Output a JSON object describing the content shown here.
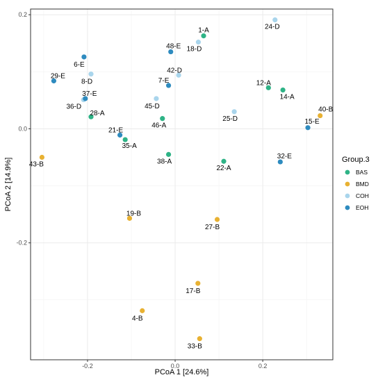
{
  "chart_data": {
    "type": "scatter",
    "title": "",
    "xlabel": "PCoA 1 [24.6%]",
    "ylabel": "PCoA 2 [14.9%]",
    "xlim": [
      -0.33,
      0.36
    ],
    "ylim": [
      -0.405,
      0.21
    ],
    "xticks": [
      -0.2,
      0.0,
      0.2
    ],
    "xtick_labels": [
      "-0.2",
      "0.0",
      "0.2"
    ],
    "yticks": [
      -0.2,
      0.0,
      0.2
    ],
    "ytick_labels": [
      "-0.2",
      "0.0",
      "0.2"
    ],
    "grid": true,
    "legend": {
      "title": "Group.3",
      "placement": "right"
    },
    "series": [
      {
        "name": "BAS",
        "color": "#2eb386",
        "points": [
          {
            "label": "1-A",
            "x": 0.065,
            "y": 0.163
          },
          {
            "label": "12-A",
            "x": 0.213,
            "y": 0.072
          },
          {
            "label": "14-A",
            "x": 0.246,
            "y": 0.068
          },
          {
            "label": "28-A",
            "x": -0.192,
            "y": 0.021
          },
          {
            "label": "46-A",
            "x": -0.029,
            "y": 0.018
          },
          {
            "label": "35-A",
            "x": -0.114,
            "y": -0.019
          },
          {
            "label": "38-A",
            "x": -0.015,
            "y": -0.045
          },
          {
            "label": "22-A",
            "x": 0.111,
            "y": -0.057
          }
        ]
      },
      {
        "name": "BMD",
        "color": "#e8b132",
        "points": [
          {
            "label": "40-B",
            "x": 0.331,
            "y": 0.023
          },
          {
            "label": "43-B",
            "x": -0.304,
            "y": -0.05
          },
          {
            "label": "19-B",
            "x": -0.104,
            "y": -0.157
          },
          {
            "label": "27-B",
            "x": 0.096,
            "y": -0.159
          },
          {
            "label": "17-B",
            "x": 0.052,
            "y": -0.271
          },
          {
            "label": "4-B",
            "x": -0.075,
            "y": -0.319
          },
          {
            "label": "33-B",
            "x": 0.056,
            "y": -0.368
          }
        ]
      },
      {
        "name": "COH",
        "color": "#a9d5ec",
        "points": [
          {
            "label": "24-D",
            "x": 0.228,
            "y": 0.191
          },
          {
            "label": "18-D",
            "x": 0.053,
            "y": 0.152
          },
          {
            "label": "8-D",
            "x": -0.192,
            "y": 0.096
          },
          {
            "label": "42-D",
            "x": 0.008,
            "y": 0.094
          },
          {
            "label": "45-D",
            "x": -0.043,
            "y": 0.053
          },
          {
            "label": "36-D",
            "x": -0.209,
            "y": 0.051
          },
          {
            "label": "25-D",
            "x": 0.135,
            "y": 0.03
          }
        ]
      },
      {
        "name": "EOH",
        "color": "#2e8bbf",
        "points": [
          {
            "label": "6-E",
            "x": -0.208,
            "y": 0.126
          },
          {
            "label": "48-E",
            "x": -0.01,
            "y": 0.135
          },
          {
            "label": "29-E",
            "x": -0.277,
            "y": 0.084
          },
          {
            "label": "7-E",
            "x": -0.015,
            "y": 0.076
          },
          {
            "label": "37-E",
            "x": -0.205,
            "y": 0.053
          },
          {
            "label": "15-E",
            "x": 0.303,
            "y": 0.002
          },
          {
            "label": "21-E",
            "x": -0.126,
            "y": -0.011
          },
          {
            "label": "32-E",
            "x": 0.24,
            "y": -0.058
          }
        ]
      }
    ]
  }
}
